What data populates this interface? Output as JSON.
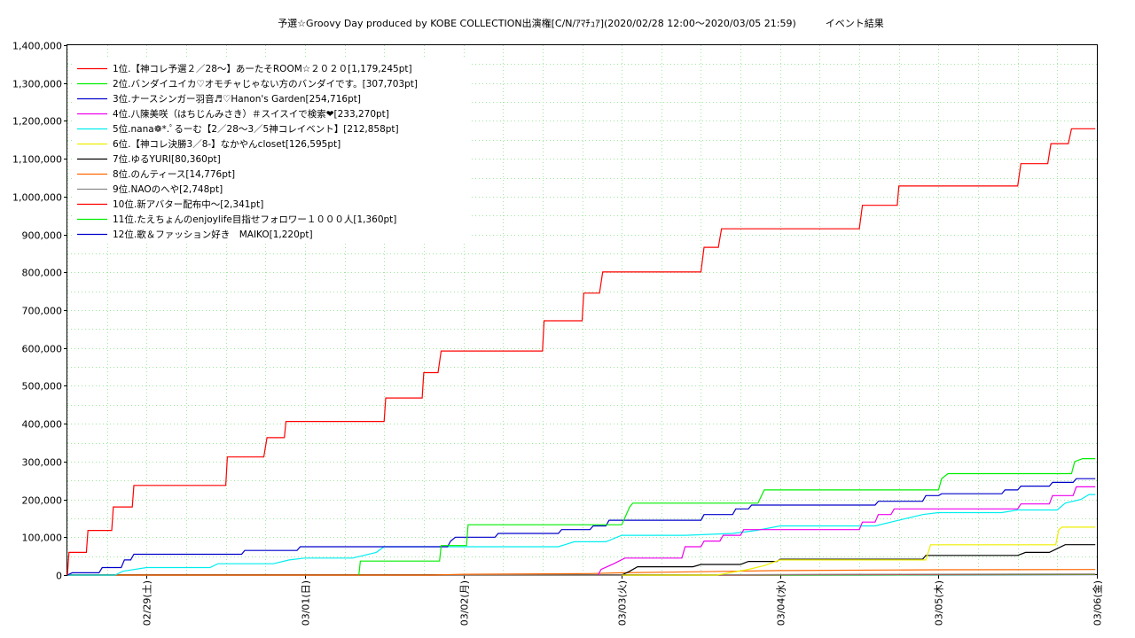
{
  "chart_data": {
    "type": "line",
    "title": "予選☆Groovy Day produced by KOBE COLLECTION出演権[C/N/ｱﾏﾁｭｱ](2020/02/28 12:00〜2020/03/05 21:59)　　　イベント結果",
    "ylim": [
      0,
      1400000
    ],
    "y_ticks": [
      {
        "value": 0,
        "label": "0"
      },
      {
        "value": 100000,
        "label": "100,000"
      },
      {
        "value": 200000,
        "label": "200,000"
      },
      {
        "value": 300000,
        "label": "300,000"
      },
      {
        "value": 400000,
        "label": "400,000"
      },
      {
        "value": 500000,
        "label": "500,000"
      },
      {
        "value": 600000,
        "label": "600,000"
      },
      {
        "value": 700000,
        "label": "700,000"
      },
      {
        "value": 800000,
        "label": "800,000"
      },
      {
        "value": 900000,
        "label": "900,000"
      },
      {
        "value": 1000000,
        "label": "1,000,000"
      },
      {
        "value": 1100000,
        "label": "1,100,000"
      },
      {
        "value": 1200000,
        "label": "1,200,000"
      },
      {
        "value": 1300000,
        "label": "1,300,000"
      },
      {
        "value": 1400000,
        "label": "1,400,000"
      }
    ],
    "xlim": [
      -0.5,
      6.0
    ],
    "x_ticks": [
      {
        "value": 0,
        "label": "02/29(土)"
      },
      {
        "value": 1,
        "label": "03/01(日)"
      },
      {
        "value": 2,
        "label": "03/02(月)"
      },
      {
        "value": 3,
        "label": "03/03(火)"
      },
      {
        "value": 4,
        "label": "03/04(水)"
      },
      {
        "value": 5,
        "label": "03/05(木)"
      },
      {
        "value": 6,
        "label": "03/06(金)"
      }
    ],
    "x_unit": "days from 02/29 00:00",
    "grid": true,
    "legend_position": "top-left",
    "series": [
      {
        "name": "1位.【神コレ予選２／28〜】あーたそROOM☆２０２０[1,179,245pt]",
        "color": "#ff0000",
        "points": [
          [
            -0.5,
            0
          ],
          [
            -0.49,
            60000
          ],
          [
            -0.38,
            60000
          ],
          [
            -0.37,
            118000
          ],
          [
            -0.22,
            118000
          ],
          [
            -0.21,
            180000
          ],
          [
            -0.09,
            180000
          ],
          [
            -0.08,
            237000
          ],
          [
            0.5,
            237000
          ],
          [
            0.51,
            312000
          ],
          [
            0.74,
            312000
          ],
          [
            0.76,
            363000
          ],
          [
            0.87,
            363000
          ],
          [
            0.88,
            406000
          ],
          [
            1.5,
            406000
          ],
          [
            1.51,
            468000
          ],
          [
            1.74,
            468000
          ],
          [
            1.75,
            535000
          ],
          [
            1.84,
            535000
          ],
          [
            1.86,
            592000
          ],
          [
            2.5,
            592000
          ],
          [
            2.51,
            672000
          ],
          [
            2.75,
            672000
          ],
          [
            2.76,
            745000
          ],
          [
            2.86,
            745000
          ],
          [
            2.88,
            801000
          ],
          [
            3.5,
            801000
          ],
          [
            3.52,
            866000
          ],
          [
            3.61,
            866000
          ],
          [
            3.63,
            915000
          ],
          [
            4.5,
            915000
          ],
          [
            4.52,
            977000
          ],
          [
            4.74,
            977000
          ],
          [
            4.75,
            1028000
          ],
          [
            5.5,
            1028000
          ],
          [
            5.52,
            1087000
          ],
          [
            5.69,
            1087000
          ],
          [
            5.71,
            1140000
          ],
          [
            5.82,
            1140000
          ],
          [
            5.84,
            1179245
          ],
          [
            5.99,
            1179245
          ]
        ]
      },
      {
        "name": "2位.バンダイユイカ♡オモチャじゃない方のバンダイです。[307,703pt]",
        "color": "#00ee00",
        "points": [
          [
            1.34,
            0
          ],
          [
            1.35,
            37000
          ],
          [
            1.85,
            37000
          ],
          [
            1.86,
            78000
          ],
          [
            2.02,
            78000
          ],
          [
            2.03,
            133000
          ],
          [
            3.0,
            133000
          ],
          [
            3.05,
            180000
          ],
          [
            3.07,
            190000
          ],
          [
            3.86,
            190000
          ],
          [
            3.9,
            225000
          ],
          [
            5.0,
            225000
          ],
          [
            5.02,
            255000
          ],
          [
            5.06,
            268000
          ],
          [
            5.84,
            268000
          ],
          [
            5.86,
            300000
          ],
          [
            5.91,
            307703
          ],
          [
            5.99,
            307703
          ]
        ]
      },
      {
        "name": "3位.ナースシンガー羽音♬♡Hanon's Garden[254,716pt]",
        "color": "#0000cc",
        "points": [
          [
            -0.5,
            0
          ],
          [
            -0.47,
            6000
          ],
          [
            -0.3,
            6000
          ],
          [
            -0.28,
            20000
          ],
          [
            -0.16,
            20000
          ],
          [
            -0.14,
            40000
          ],
          [
            -0.1,
            40000
          ],
          [
            -0.08,
            55000
          ],
          [
            0.6,
            55000
          ],
          [
            0.62,
            65000
          ],
          [
            0.95,
            65000
          ],
          [
            0.97,
            75000
          ],
          [
            1.9,
            75000
          ],
          [
            1.92,
            90000
          ],
          [
            1.95,
            100000
          ],
          [
            2.2,
            100000
          ],
          [
            2.22,
            110000
          ],
          [
            2.6,
            110000
          ],
          [
            2.62,
            120000
          ],
          [
            2.8,
            120000
          ],
          [
            2.82,
            130000
          ],
          [
            2.9,
            130000
          ],
          [
            2.92,
            145000
          ],
          [
            3.5,
            145000
          ],
          [
            3.52,
            160000
          ],
          [
            3.7,
            160000
          ],
          [
            3.72,
            175000
          ],
          [
            3.8,
            175000
          ],
          [
            3.82,
            185000
          ],
          [
            4.6,
            185000
          ],
          [
            4.62,
            195000
          ],
          [
            4.9,
            195000
          ],
          [
            4.92,
            210000
          ],
          [
            5.0,
            210000
          ],
          [
            5.02,
            215000
          ],
          [
            5.4,
            215000
          ],
          [
            5.42,
            225000
          ],
          [
            5.5,
            225000
          ],
          [
            5.52,
            235000
          ],
          [
            5.7,
            235000
          ],
          [
            5.72,
            245000
          ],
          [
            5.85,
            245000
          ],
          [
            5.87,
            254716
          ],
          [
            5.99,
            254716
          ]
        ]
      },
      {
        "name": "4位.八陳美咲（はちじんみさき）＃スイスイで検索❤[233,270pt]",
        "color": "#ee00ee",
        "points": [
          [
            2.85,
            0
          ],
          [
            2.87,
            15000
          ],
          [
            2.95,
            30000
          ],
          [
            3.02,
            45000
          ],
          [
            3.38,
            45000
          ],
          [
            3.4,
            75000
          ],
          [
            3.5,
            75000
          ],
          [
            3.52,
            90000
          ],
          [
            3.62,
            90000
          ],
          [
            3.64,
            105000
          ],
          [
            3.75,
            105000
          ],
          [
            3.77,
            120000
          ],
          [
            4.5,
            120000
          ],
          [
            4.52,
            140000
          ],
          [
            4.6,
            140000
          ],
          [
            4.62,
            160000
          ],
          [
            4.7,
            160000
          ],
          [
            4.72,
            175000
          ],
          [
            5.5,
            175000
          ],
          [
            5.52,
            188000
          ],
          [
            5.7,
            188000
          ],
          [
            5.72,
            210000
          ],
          [
            5.85,
            210000
          ],
          [
            5.87,
            233270
          ],
          [
            5.99,
            233270
          ]
        ]
      },
      {
        "name": "5位.nana❁*.ﾟるーむ【2／28〜3／5神コレイベント】[212,858pt]",
        "color": "#00eeee",
        "points": [
          [
            -0.5,
            0
          ],
          [
            -0.2,
            0
          ],
          [
            -0.15,
            10000
          ],
          [
            0.0,
            20000
          ],
          [
            0.4,
            20000
          ],
          [
            0.45,
            30000
          ],
          [
            0.8,
            30000
          ],
          [
            0.9,
            40000
          ],
          [
            1.0,
            45000
          ],
          [
            1.3,
            45000
          ],
          [
            1.45,
            60000
          ],
          [
            1.5,
            75000
          ],
          [
            2.6,
            75000
          ],
          [
            2.7,
            88000
          ],
          [
            2.9,
            88000
          ],
          [
            3.0,
            105000
          ],
          [
            3.4,
            105000
          ],
          [
            3.7,
            110000
          ],
          [
            3.85,
            118000
          ],
          [
            4.0,
            130000
          ],
          [
            4.6,
            130000
          ],
          [
            4.75,
            145000
          ],
          [
            4.9,
            160000
          ],
          [
            5.0,
            165000
          ],
          [
            5.4,
            165000
          ],
          [
            5.5,
            172000
          ],
          [
            5.75,
            172000
          ],
          [
            5.8,
            190000
          ],
          [
            5.9,
            200000
          ],
          [
            5.95,
            212858
          ],
          [
            5.99,
            212858
          ]
        ]
      },
      {
        "name": "6位.【神コレ決勝3／8-】なかやんcloset[126,595pt]",
        "color": "#eeee00",
        "points": [
          [
            3.0,
            0
          ],
          [
            3.6,
            0
          ],
          [
            3.8,
            15000
          ],
          [
            3.9,
            25000
          ],
          [
            4.0,
            40000
          ],
          [
            4.92,
            40000
          ],
          [
            4.95,
            80000
          ],
          [
            5.74,
            80000
          ],
          [
            5.76,
            120000
          ],
          [
            5.78,
            126595
          ],
          [
            5.99,
            126595
          ]
        ]
      },
      {
        "name": "7位.ゆるYURI[80,360pt]",
        "color": "#000000",
        "points": [
          [
            3.0,
            0
          ],
          [
            3.05,
            10000
          ],
          [
            3.1,
            22000
          ],
          [
            3.45,
            22000
          ],
          [
            3.5,
            28000
          ],
          [
            3.75,
            28000
          ],
          [
            3.8,
            36000
          ],
          [
            3.98,
            36000
          ],
          [
            4.0,
            42000
          ],
          [
            4.9,
            42000
          ],
          [
            4.92,
            52000
          ],
          [
            5.5,
            52000
          ],
          [
            5.55,
            60000
          ],
          [
            5.7,
            60000
          ],
          [
            5.75,
            70000
          ],
          [
            5.8,
            80360
          ],
          [
            5.99,
            80360
          ]
        ]
      },
      {
        "name": "8位.のんティース[14,776pt]",
        "color": "#ff6600",
        "points": [
          [
            -0.5,
            0
          ],
          [
            1.8,
            0
          ],
          [
            2.0,
            2000
          ],
          [
            2.8,
            4000
          ],
          [
            3.0,
            6000
          ],
          [
            3.5,
            9000
          ],
          [
            4.0,
            12000
          ],
          [
            5.0,
            14000
          ],
          [
            5.99,
            14776
          ]
        ]
      },
      {
        "name": "9位.NAOのへや[2,748pt]",
        "color": "#888888",
        "points": [
          [
            -0.5,
            0
          ],
          [
            3.0,
            0
          ],
          [
            3.5,
            1000
          ],
          [
            4.5,
            2000
          ],
          [
            5.99,
            2748
          ]
        ]
      },
      {
        "name": "10位.新アバター配布中〜[2,341pt]",
        "color": "#ff0000",
        "points": [
          [
            -0.5,
            0
          ],
          [
            3.5,
            0
          ],
          [
            4.0,
            1000
          ],
          [
            5.99,
            2341
          ]
        ]
      },
      {
        "name": "11位.たえちょんのenjoylife目指せフォロワー１０００人[1,360pt]",
        "color": "#00ee00",
        "points": [
          [
            -0.5,
            0
          ],
          [
            4.0,
            0
          ],
          [
            5.0,
            800
          ],
          [
            5.99,
            1360
          ]
        ]
      },
      {
        "name": "12位.歌＆ファッション好き　MAIKO[1,220pt]",
        "color": "#0000cc",
        "points": [
          [
            -0.5,
            0
          ],
          [
            4.5,
            0
          ],
          [
            5.5,
            800
          ],
          [
            5.99,
            1220
          ]
        ]
      }
    ]
  }
}
